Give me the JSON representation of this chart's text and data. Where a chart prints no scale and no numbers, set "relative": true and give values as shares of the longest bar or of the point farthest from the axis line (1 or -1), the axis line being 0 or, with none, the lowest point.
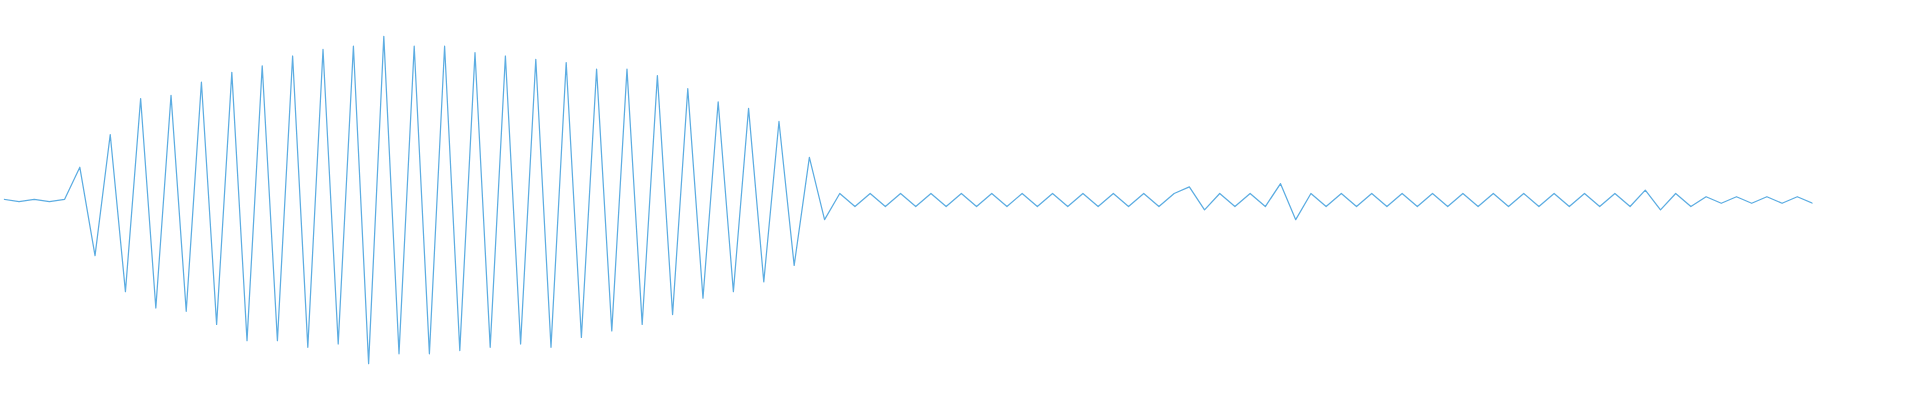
{
  "chart_data": {
    "type": "line",
    "relative": true,
    "categories": [
      null,
      null,
      null,
      null,
      null,
      null,
      null,
      null,
      null,
      null,
      null,
      null,
      null,
      null,
      null,
      null,
      null,
      null,
      null,
      null,
      null,
      null,
      null,
      null,
      null,
      null,
      null,
      null,
      null,
      null,
      null,
      null,
      null,
      null,
      null,
      null,
      null,
      null,
      null,
      null,
      null,
      null,
      null,
      null,
      null,
      null,
      null,
      null,
      null,
      null,
      null,
      null,
      null,
      null,
      null,
      null,
      null,
      null,
      null,
      null,
      null,
      null,
      null,
      null,
      null,
      null,
      null,
      null,
      null,
      null,
      null,
      null,
      null,
      null,
      null,
      null,
      null,
      null,
      null,
      null,
      null,
      null,
      null,
      null,
      null,
      null,
      null,
      null,
      null,
      null,
      null,
      null,
      null,
      null,
      null,
      null,
      null,
      null,
      null,
      null,
      null,
      null,
      null,
      null,
      null,
      null,
      null,
      null,
      null,
      null,
      null,
      null,
      null,
      null,
      null,
      null,
      null,
      null,
      null,
      null
    ],
    "series": [
      {
        "color": "#5dade2",
        "values": [
          0.502,
          0.495,
          0.502,
          0.495,
          0.502,
          0.6,
          0.33,
          0.7,
          0.22,
          0.81,
          0.17,
          0.82,
          0.16,
          0.86,
          0.12,
          0.89,
          0.07,
          0.91,
          0.07,
          0.94,
          0.05,
          0.96,
          0.06,
          0.97,
          0,
          1.0,
          0.03,
          0.97,
          0.03,
          0.97,
          0.04,
          0.95,
          0.05,
          0.94,
          0.06,
          0.93,
          0.05,
          0.92,
          0.08,
          0.9,
          0.1,
          0.9,
          0.12,
          0.88,
          0.15,
          0.84,
          0.2,
          0.8,
          0.22,
          0.78,
          0.25,
          0.74,
          0.3,
          0.63,
          0.44,
          0.52,
          0.48,
          0.52,
          0.48,
          0.52,
          0.48,
          0.52,
          0.48,
          0.52,
          0.48,
          0.52,
          0.48,
          0.52,
          0.48,
          0.52,
          0.48,
          0.52,
          0.48,
          0.52,
          0.48,
          0.52,
          0.48,
          0.52,
          0.54,
          0.47,
          0.52,
          0.48,
          0.52,
          0.48,
          0.55,
          0.44,
          0.52,
          0.48,
          0.52,
          0.48,
          0.52,
          0.48,
          0.52,
          0.48,
          0.52,
          0.48,
          0.52,
          0.48,
          0.52,
          0.48,
          0.52,
          0.48,
          0.52,
          0.48,
          0.52,
          0.48,
          0.52,
          0.48,
          0.53,
          0.47,
          0.52,
          0.48,
          0.51,
          0.49,
          0.51,
          0.49,
          0.51,
          0.49,
          0.51,
          0.49
        ]
      }
    ]
  }
}
